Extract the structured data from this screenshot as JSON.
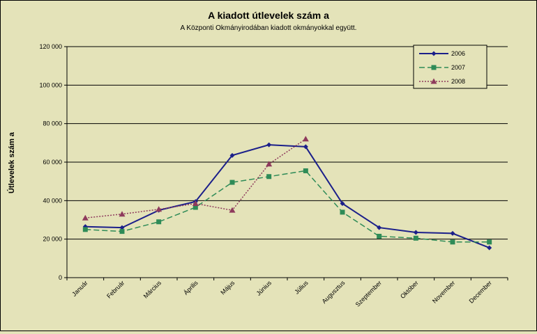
{
  "chart_data": {
    "type": "line",
    "title": "A  kiadott útlevelek szám a",
    "subtitle": "A Központi Okmányirodában kiadott okmányokkal együtt.",
    "xlabel": "",
    "ylabel": "Útlevelek szám a",
    "ylim": [
      0,
      120000
    ],
    "yticks": [
      "0",
      "20 000",
      "40 000",
      "60 000",
      "80 000",
      "100 000",
      "120 000"
    ],
    "grid": true,
    "legend_position": "top-right",
    "categories": [
      "Január",
      "Február",
      "Március",
      "Április",
      "Május",
      "Június",
      "Július",
      "Augusztus",
      "Szeptember",
      "Október",
      "November",
      "December"
    ],
    "series": [
      {
        "name": "2006",
        "color": "#1b1f8a",
        "marker": "diamond",
        "line": "solid",
        "values": [
          26500,
          26000,
          35000,
          39500,
          63500,
          69000,
          68000,
          38500,
          26000,
          23500,
          23000,
          15500
        ]
      },
      {
        "name": "2007",
        "color": "#2e8b57",
        "marker": "square",
        "line": "dashed",
        "values": [
          25000,
          24000,
          29000,
          36500,
          49500,
          52500,
          55500,
          34000,
          21500,
          20500,
          18500,
          18500
        ]
      },
      {
        "name": "2008",
        "color": "#8e3a5c",
        "marker": "triangle",
        "line": "dotted",
        "values": [
          31000,
          33000,
          35500,
          38500,
          35000,
          59000,
          72000,
          null,
          null,
          null,
          null,
          null
        ]
      }
    ]
  }
}
